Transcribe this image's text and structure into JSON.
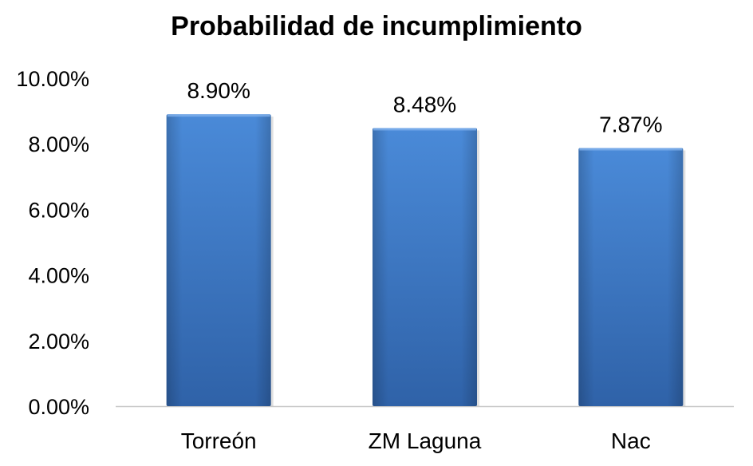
{
  "chart_data": {
    "type": "bar",
    "title": "Probabilidad de incumplimiento",
    "xlabel": "",
    "ylabel": "",
    "categories": [
      "Torreón",
      "ZM Laguna",
      "Nac"
    ],
    "values": [
      8.9,
      8.48,
      7.87
    ],
    "data_labels": [
      "8.90%",
      "8.48%",
      "7.87%"
    ],
    "ylim": [
      0,
      10
    ],
    "yticks": [
      0,
      2,
      4,
      6,
      8,
      10
    ],
    "ytick_labels": [
      "0.00%",
      "2.00%",
      "4.00%",
      "6.00%",
      "8.00%",
      "10.00%"
    ],
    "unit": "%",
    "grid": false,
    "legend": "none",
    "bar_color": "#3d78c6"
  }
}
